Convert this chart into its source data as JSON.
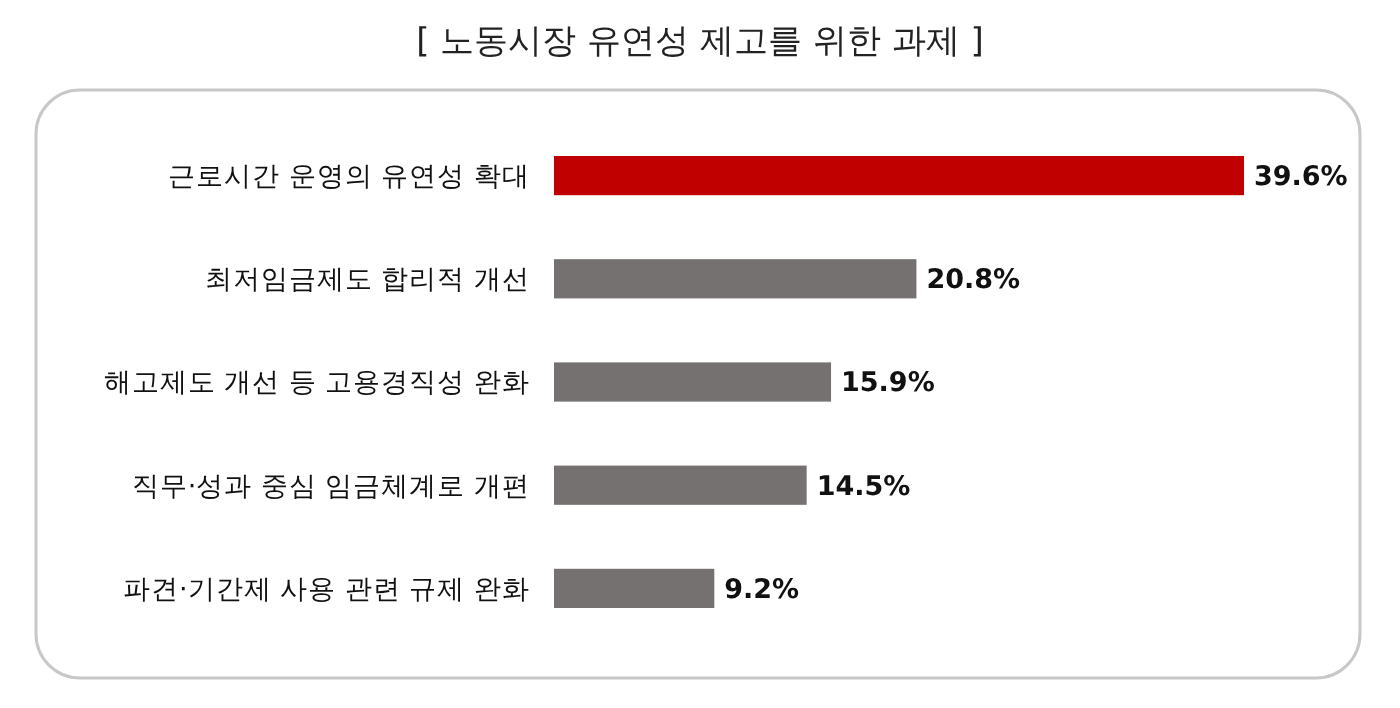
{
  "chart_data": {
    "type": "bar",
    "orientation": "horizontal",
    "title": "[ 노동시장 유연성 제고를 위한 과제 ]",
    "categories": [
      "근로시간 운영의 유연성 확대",
      "최저임금제도 합리적 개선",
      "해고제도 개선 등 고용경직성 완화",
      "직무·성과 중심 임금체계로 개편",
      "파견·기간제 사용 관련 규제 완화"
    ],
    "values": [
      39.6,
      20.8,
      15.9,
      14.5,
      9.2
    ],
    "colors": [
      "#c00000",
      "#767171",
      "#767171",
      "#767171",
      "#767171"
    ],
    "value_labels": [
      "39.6%",
      "20.8%",
      "15.9%",
      "14.5%",
      "9.2%"
    ]
  }
}
